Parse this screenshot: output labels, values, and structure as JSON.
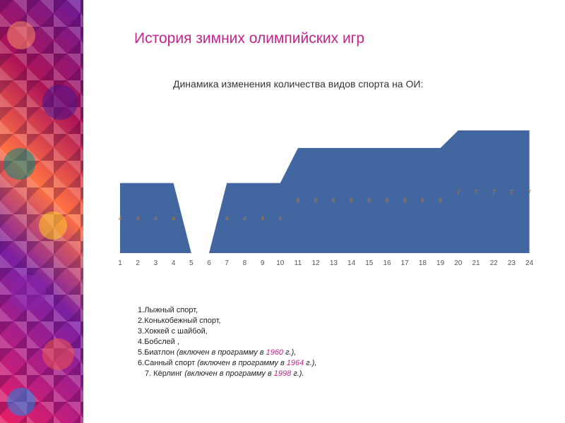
{
  "slide": {
    "title": "История зимних олимпийских игр",
    "subtitle": "Динамика изменения количества видов спорта на ОИ:"
  },
  "legend": [
    {
      "num": "1.",
      "name": "Лыжный спорт,",
      "note": "",
      "year": "",
      "note_end": ""
    },
    {
      "num": "2.",
      "name": "Конькобежный спорт,",
      "note": "",
      "year": "",
      "note_end": ""
    },
    {
      "num": "3.",
      "name": "Хоккей с шайбой,",
      "note": "",
      "year": "",
      "note_end": ""
    },
    {
      "num": "4.",
      "name": "Бобслей ,",
      "note": "",
      "year": "",
      "note_end": ""
    },
    {
      "num": "5.",
      "name": "Биатлон ",
      "note": "(включен в программу в ",
      "year": "1960",
      "note_end": " г.),"
    },
    {
      "num": "6.",
      "name": "Санный спорт ",
      "note": "(включен в программу в ",
      "year": "1964",
      "note_end": " г.),"
    },
    {
      "num": "7. ",
      "name": "Кёрлинг ",
      "note": "(включен в программу в ",
      "year": "1998",
      "note_end": " г.)."
    }
  ],
  "colors": {
    "area_fill": "#4166a0",
    "title": "#c2258c",
    "label": "#b5793a",
    "tick": "#555555"
  },
  "chart_data": {
    "type": "area",
    "x": [
      1,
      2,
      3,
      4,
      5,
      6,
      7,
      8,
      9,
      10,
      11,
      12,
      13,
      14,
      15,
      16,
      17,
      18,
      19,
      20,
      21,
      22,
      23,
      24
    ],
    "values": [
      4,
      4,
      4,
      4,
      0,
      0,
      4,
      4,
      4,
      4,
      6,
      6,
      6,
      6,
      6,
      6,
      6,
      6,
      6,
      7,
      7,
      7,
      7,
      7
    ],
    "data_labels": [
      "4",
      "4",
      "4",
      "4",
      "",
      "",
      "4",
      "4",
      "4",
      "4",
      "6",
      "6",
      "6",
      "6",
      "6",
      "6",
      "6",
      "6",
      "6",
      "7",
      "7",
      "7",
      "7",
      "7"
    ],
    "ylim": [
      0,
      7
    ],
    "title": "",
    "xlabel": "",
    "ylabel": "",
    "grid": false,
    "legend": false
  }
}
